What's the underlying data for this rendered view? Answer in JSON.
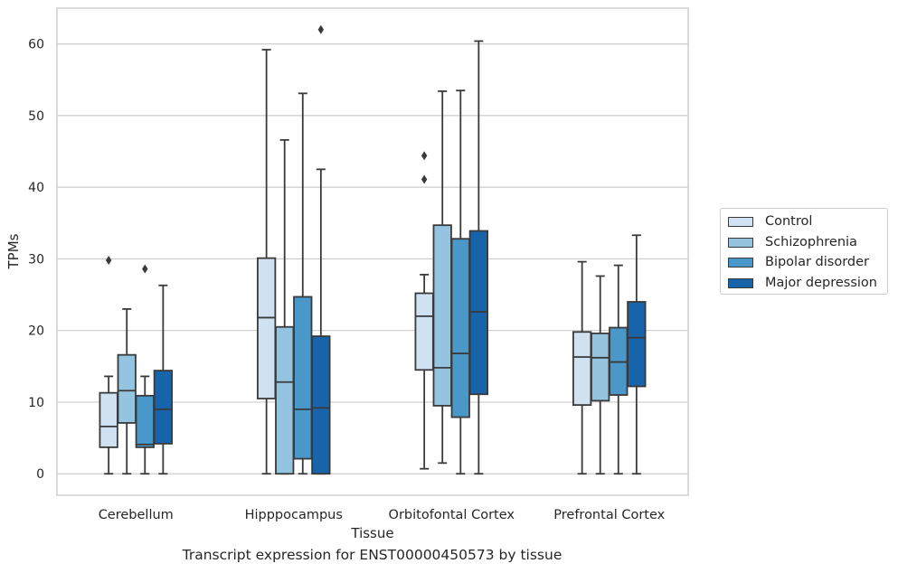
{
  "chart_data": {
    "type": "box",
    "xlabel": "Tissue",
    "ylabel": "TPMs",
    "caption": "Transcript expression for ENST00000450573 by tissue",
    "ylim": [
      -3,
      65
    ],
    "yticks": [
      0,
      10,
      20,
      30,
      40,
      50,
      60
    ],
    "ytick_labels": [
      "0",
      "10",
      "20",
      "30",
      "40",
      "50",
      "60"
    ],
    "categories": [
      "Cerebellum",
      "Hipppocampus",
      "Orbitofontal Cortex",
      "Prefrontal Cortex"
    ],
    "grid": "horizontal",
    "legend_position": "right",
    "series": [
      {
        "name": "Control",
        "color": "#d0e1f2",
        "boxes": [
          {
            "whislo": 0,
            "q1": 3.7,
            "med": 6.6,
            "q3": 11.3,
            "whishi": 13.6,
            "fliers": [
              29.8
            ]
          },
          {
            "whislo": 0,
            "q1": 10.5,
            "med": 21.8,
            "q3": 30.1,
            "whishi": 59.2,
            "fliers": []
          },
          {
            "whislo": 0.7,
            "q1": 14.5,
            "med": 22.0,
            "q3": 25.2,
            "whishi": 27.8,
            "fliers": [
              41.1,
              44.4
            ]
          },
          {
            "whislo": 0,
            "q1": 9.6,
            "med": 16.3,
            "q3": 19.8,
            "whishi": 29.6,
            "fliers": []
          }
        ]
      },
      {
        "name": "Schizophrenia",
        "color": "#94c4df",
        "boxes": [
          {
            "whislo": 0,
            "q1": 7.1,
            "med": 11.6,
            "q3": 16.6,
            "whishi": 23.0,
            "fliers": []
          },
          {
            "whislo": 0,
            "q1": 0,
            "med": 12.8,
            "q3": 20.5,
            "whishi": 46.6,
            "fliers": []
          },
          {
            "whislo": 1.5,
            "q1": 9.5,
            "med": 14.8,
            "q3": 34.7,
            "whishi": 53.4,
            "fliers": []
          },
          {
            "whislo": 0,
            "q1": 10.2,
            "med": 16.2,
            "q3": 19.6,
            "whishi": 27.6,
            "fliers": []
          }
        ]
      },
      {
        "name": "Bipolar disorder",
        "color": "#4a98c9",
        "boxes": [
          {
            "whislo": 0,
            "q1": 3.7,
            "med": 4.1,
            "q3": 10.9,
            "whishi": 13.6,
            "fliers": [
              28.6
            ]
          },
          {
            "whislo": 0,
            "q1": 2.1,
            "med": 9.0,
            "q3": 24.7,
            "whishi": 53.1,
            "fliers": []
          },
          {
            "whislo": 0,
            "q1": 7.9,
            "med": 16.8,
            "q3": 32.8,
            "whishi": 53.5,
            "fliers": []
          },
          {
            "whislo": 0,
            "q1": 11.0,
            "med": 15.6,
            "q3": 20.4,
            "whishi": 29.1,
            "fliers": []
          }
        ]
      },
      {
        "name": "Major depression",
        "color": "#1764ab",
        "boxes": [
          {
            "whislo": 0,
            "q1": 4.2,
            "med": 9.0,
            "q3": 14.4,
            "whishi": 26.3,
            "fliers": []
          },
          {
            "whislo": 0,
            "q1": 0,
            "med": 9.2,
            "q3": 19.2,
            "whishi": 42.5,
            "fliers": [
              62.0
            ]
          },
          {
            "whislo": 0,
            "q1": 11.1,
            "med": 22.6,
            "q3": 33.9,
            "whishi": 60.4,
            "fliers": []
          },
          {
            "whislo": 0,
            "q1": 12.2,
            "med": 19.0,
            "q3": 24.0,
            "whishi": 33.3,
            "fliers": []
          }
        ]
      }
    ]
  }
}
